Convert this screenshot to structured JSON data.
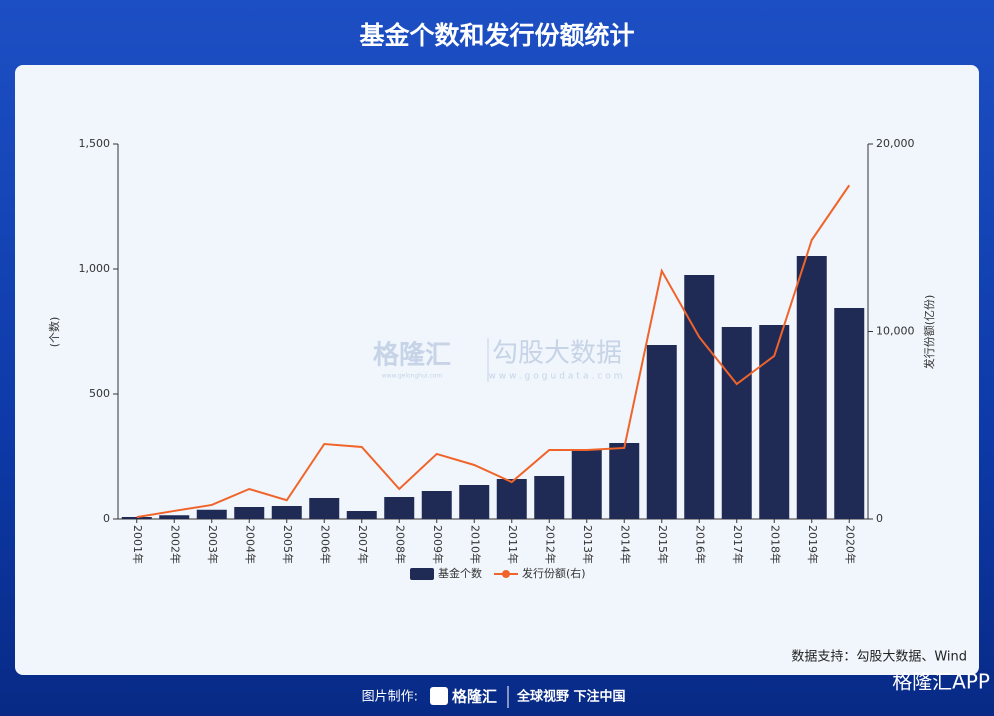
{
  "chart_data": {
    "type": "bar-line",
    "title": "基金个数和发行份额统计",
    "y_label": "(个数)",
    "y2_label": "发行份额(亿份)",
    "categories": [
      "2001年",
      "2002年",
      "2003年",
      "2004年",
      "2005年",
      "2006年",
      "2007年",
      "2008年",
      "2009年",
      "2010年",
      "2011年",
      "2012年",
      "2013年",
      "2014年",
      "2015年",
      "2016年",
      "2017年",
      "2018年",
      "2019年",
      "2020年"
    ],
    "series": [
      {
        "name": "基金个数",
        "type": "bar",
        "color": "#1f2a55",
        "values": [
          8,
          15,
          37,
          48,
          52,
          84,
          32,
          88,
          112,
          136,
          160,
          172,
          276,
          304,
          696,
          976,
          768,
          776,
          1052,
          844
        ]
      },
      {
        "name": "发行份额(右)",
        "type": "line",
        "axis": "y2",
        "color": "#f0642a",
        "values": [
          100,
          430,
          750,
          1600,
          1000,
          4000,
          3840,
          1600,
          3470,
          2880,
          1970,
          3680,
          3680,
          3790,
          13230,
          9700,
          7200,
          8700,
          14880,
          17800
        ]
      }
    ],
    "ylim": [
      0,
      1500
    ],
    "yticks": [
      0,
      500,
      {
        "value": 1000,
        "label": "1,000"
      },
      {
        "value": 1500,
        "label": "1,500"
      }
    ],
    "y2lim": [
      0,
      20000
    ],
    "y2ticks": [
      0,
      {
        "value": 10000,
        "label": "10,000"
      },
      {
        "value": 20000,
        "label": "20,000"
      }
    ],
    "legend": "bottom"
  },
  "watermark": {
    "brand": "格隆汇",
    "brand_url": "www.gelonghui.com",
    "partner": "勾股大数据",
    "partner_url": "www.gogudata.com"
  },
  "source": "数据支持：勾股大数据、Wind",
  "footer": {
    "made_by": "图片制作:",
    "brand": "格隆汇",
    "slogan": "全球视野 下注中国",
    "app": "格隆汇APP"
  }
}
